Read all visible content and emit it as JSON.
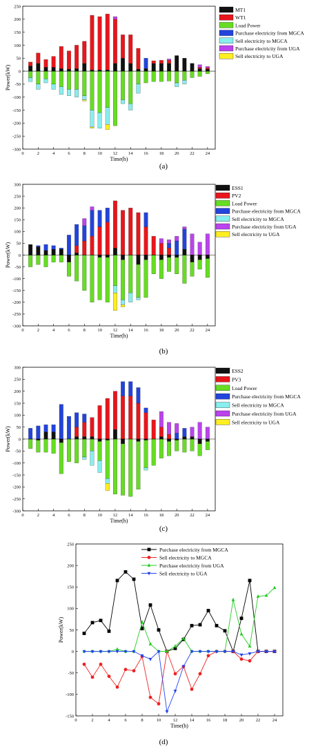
{
  "colors": {
    "MT1": "#111111",
    "WT1": "#e8161b",
    "ESS1": "#111111",
    "PV2": "#e8161b",
    "ESS2": "#111111",
    "PV3": "#e8161b",
    "Load Power": "#66dd22",
    "Purchase electricity from MGCA": "#2244dd",
    "Sell electricity to MGCA": "#88eeee",
    "Purchase electricity from UGA": "#bb44ee",
    "Sell electricity to UGA": "#ffee22",
    "d_mgca_purchase": "#000000",
    "d_mgca_sell": "#ee2222",
    "d_uga_purchase": "#22cc22",
    "d_uga_sell": "#2244ee"
  },
  "chart_data": [
    {
      "id": "a",
      "type": "bar",
      "caption": "(a)",
      "xlabel": "Time(h)",
      "ylabel": "Power(kW)",
      "ylim": [
        -300,
        250
      ],
      "yticks": [
        -300,
        -250,
        -200,
        -150,
        -100,
        -50,
        0,
        50,
        100,
        150,
        200,
        250
      ],
      "xlim": [
        0,
        25
      ],
      "xticks": [
        0,
        2,
        4,
        6,
        8,
        10,
        12,
        14,
        16,
        18,
        20,
        22,
        24
      ],
      "legend_position": "top-right",
      "legend": [
        "MT1",
        "WT1",
        "Load Power",
        "Purchase electricity from MGCA",
        "Sell electricity to MGCA",
        "Purchase electricity from UGA",
        "Sell electricity to UGA"
      ],
      "x": [
        1,
        2,
        3,
        4,
        5,
        6,
        7,
        8,
        9,
        10,
        11,
        12,
        13,
        14,
        15,
        16,
        17,
        18,
        19,
        20,
        21,
        22,
        23,
        24
      ],
      "positive": [
        {
          "name": "MT1",
          "values": [
            20,
            30,
            15,
            15,
            10,
            8,
            10,
            30,
            5,
            5,
            5,
            30,
            50,
            30,
            8,
            10,
            30,
            30,
            30,
            60,
            50,
            30,
            10,
            8
          ]
        },
        {
          "name": "WT1",
          "values": [
            15,
            40,
            30,
            42,
            85,
            70,
            90,
            85,
            210,
            205,
            215,
            170,
            90,
            110,
            80,
            0,
            10,
            12,
            12,
            0,
            0,
            0,
            5,
            5
          ]
        },
        {
          "name": "Purchase electricity from MGCA",
          "values": [
            0,
            0,
            0,
            0,
            0,
            0,
            0,
            0,
            0,
            0,
            0,
            0,
            0,
            0,
            0,
            40,
            0,
            0,
            0,
            0,
            0,
            0,
            0,
            0
          ]
        },
        {
          "name": "Purchase electricity from UGA",
          "values": [
            0,
            0,
            0,
            0,
            0,
            0,
            0,
            0,
            0,
            0,
            0,
            10,
            0,
            0,
            0,
            0,
            0,
            0,
            5,
            0,
            0,
            0,
            10,
            5
          ]
        }
      ],
      "negative": [
        {
          "name": "Load Power",
          "values": [
            -25,
            -50,
            -30,
            -50,
            -60,
            -70,
            -70,
            -95,
            -150,
            -160,
            -140,
            -210,
            -110,
            -125,
            -50,
            -45,
            -40,
            -40,
            -38,
            -45,
            -35,
            -25,
            -20,
            -10
          ]
        },
        {
          "name": "Sell electricity to MGCA",
          "values": [
            -15,
            -20,
            -15,
            -20,
            -30,
            -25,
            -30,
            -15,
            -65,
            -60,
            -65,
            0,
            -15,
            -25,
            -35,
            0,
            0,
            0,
            0,
            -15,
            -15,
            0,
            0,
            0
          ]
        },
        {
          "name": "Sell electricity to UGA",
          "values": [
            0,
            0,
            0,
            0,
            0,
            0,
            0,
            -5,
            -5,
            0,
            -20,
            0,
            0,
            0,
            0,
            0,
            0,
            0,
            0,
            0,
            0,
            0,
            0,
            0
          ]
        }
      ]
    },
    {
      "id": "b",
      "type": "bar",
      "caption": "(b)",
      "xlabel": "Time(h)",
      "ylabel": "Power(kW)",
      "ylim": [
        -300,
        300
      ],
      "yticks": [
        -300,
        -250,
        -200,
        -150,
        -100,
        -50,
        0,
        50,
        100,
        150,
        200,
        250,
        300
      ],
      "xlim": [
        0,
        25
      ],
      "xticks": [
        0,
        2,
        4,
        6,
        8,
        10,
        12,
        14,
        16,
        18,
        20,
        22,
        24
      ],
      "legend_position": "top-right",
      "legend": [
        "ESS1",
        "PV2",
        "Load Power",
        "Purchase electricity from MGCA",
        "Sell electricity to MGCA",
        "Purchase electricity from UGA",
        "Sell electricity to UGA"
      ],
      "x": [
        1,
        2,
        3,
        4,
        5,
        6,
        7,
        8,
        9,
        10,
        11,
        12,
        13,
        14,
        15,
        16,
        17,
        18,
        19,
        20,
        21,
        22,
        23,
        24
      ],
      "positive": [
        {
          "name": "ESS1",
          "values": [
            45,
            35,
            20,
            25,
            25,
            0,
            10,
            0,
            0,
            0,
            0,
            30,
            0,
            0,
            0,
            0,
            0,
            0,
            0,
            0,
            25,
            0,
            0,
            0
          ]
        },
        {
          "name": "PV2",
          "values": [
            0,
            0,
            0,
            0,
            0,
            0,
            30,
            60,
            80,
            120,
            140,
            200,
            190,
            200,
            180,
            120,
            80,
            50,
            30,
            0,
            0,
            0,
            0,
            0
          ]
        },
        {
          "name": "Purchase electricity from MGCA",
          "values": [
            0,
            5,
            25,
            15,
            5,
            85,
            90,
            65,
            110,
            70,
            60,
            0,
            0,
            0,
            0,
            60,
            0,
            0,
            20,
            60,
            85,
            0,
            0,
            0
          ]
        },
        {
          "name": "Purchase electricity from UGA",
          "values": [
            0,
            0,
            0,
            0,
            0,
            0,
            0,
            30,
            15,
            0,
            0,
            0,
            0,
            0,
            0,
            0,
            0,
            20,
            15,
            20,
            10,
            90,
            55,
            90
          ]
        }
      ],
      "negative": [
        {
          "name": "ESS1",
          "values": [
            0,
            0,
            0,
            0,
            0,
            -30,
            0,
            0,
            0,
            -10,
            -10,
            0,
            -20,
            0,
            -40,
            -20,
            0,
            -20,
            -10,
            -10,
            0,
            -30,
            -20,
            -15
          ]
        },
        {
          "name": "Load Power",
          "values": [
            -50,
            -40,
            -50,
            -30,
            -30,
            -60,
            -110,
            -150,
            -200,
            -180,
            -190,
            -130,
            -170,
            -160,
            -140,
            -160,
            -80,
            -80,
            -60,
            -70,
            -120,
            -60,
            -40,
            -80
          ]
        },
        {
          "name": "Sell electricity to MGCA",
          "values": [
            0,
            0,
            0,
            0,
            0,
            0,
            0,
            0,
            0,
            0,
            0,
            -30,
            -20,
            -40,
            -10,
            0,
            0,
            0,
            0,
            0,
            0,
            0,
            0,
            0
          ]
        },
        {
          "name": "Sell electricity to UGA",
          "values": [
            0,
            0,
            0,
            0,
            0,
            0,
            0,
            0,
            0,
            0,
            0,
            -75,
            -10,
            0,
            0,
            0,
            0,
            0,
            0,
            0,
            0,
            0,
            0,
            0
          ]
        }
      ]
    },
    {
      "id": "c",
      "type": "bar",
      "caption": "(c)",
      "xlabel": "Time(h)",
      "ylabel": "Power(kW)",
      "ylim": [
        -300,
        300
      ],
      "yticks": [
        -300,
        -250,
        -200,
        -150,
        -100,
        -50,
        0,
        50,
        100,
        150,
        200,
        250,
        300
      ],
      "xlim": [
        0,
        25
      ],
      "xticks": [
        0,
        2,
        4,
        6,
        8,
        10,
        12,
        14,
        16,
        18,
        20,
        22,
        24
      ],
      "legend_position": "top-right",
      "legend": [
        "ESS2",
        "PV3",
        "Load Power",
        "Purchase electricity from MGCA",
        "Sell electricity to MGCA",
        "Purchase electricity from UGA",
        "Sell electricity to UGA"
      ],
      "x": [
        1,
        2,
        3,
        4,
        5,
        6,
        7,
        8,
        9,
        10,
        11,
        12,
        13,
        14,
        15,
        16,
        17,
        18,
        19,
        20,
        21,
        22,
        23,
        24
      ],
      "positive": [
        {
          "name": "ESS2",
          "values": [
            0,
            0,
            30,
            30,
            0,
            0,
            10,
            10,
            10,
            0,
            0,
            40,
            0,
            0,
            0,
            0,
            0,
            10,
            0,
            0,
            10,
            10,
            0,
            0
          ]
        },
        {
          "name": "PV3",
          "values": [
            0,
            0,
            0,
            0,
            0,
            0,
            40,
            60,
            80,
            140,
            170,
            160,
            180,
            180,
            150,
            110,
            80,
            40,
            20,
            0,
            0,
            0,
            0,
            0
          ]
        },
        {
          "name": "Purchase electricity from MGCA",
          "values": [
            45,
            55,
            30,
            30,
            145,
            95,
            60,
            35,
            0,
            0,
            0,
            0,
            60,
            60,
            65,
            20,
            0,
            0,
            0,
            25,
            35,
            0,
            0,
            0
          ]
        },
        {
          "name": "Purchase electricity from UGA",
          "values": [
            0,
            0,
            0,
            0,
            0,
            0,
            0,
            0,
            0,
            0,
            0,
            0,
            0,
            0,
            0,
            0,
            0,
            65,
            50,
            40,
            0,
            40,
            70,
            50
          ]
        }
      ],
      "negative": [
        {
          "name": "ESS2",
          "values": [
            0,
            -5,
            0,
            0,
            -15,
            0,
            0,
            0,
            0,
            -10,
            -5,
            0,
            -20,
            0,
            -10,
            -5,
            0,
            0,
            -10,
            -5,
            0,
            0,
            -20,
            -10
          ]
        },
        {
          "name": "Load Power",
          "values": [
            -40,
            -50,
            -55,
            -60,
            -130,
            -95,
            -100,
            -75,
            -50,
            -80,
            -160,
            -230,
            -215,
            -240,
            -200,
            -115,
            -110,
            -80,
            -60,
            -45,
            -55,
            -50,
            -50,
            -35
          ]
        },
        {
          "name": "Sell electricity to MGCA",
          "values": [
            0,
            0,
            0,
            0,
            0,
            0,
            0,
            -10,
            -60,
            -50,
            -20,
            0,
            0,
            0,
            0,
            -10,
            0,
            0,
            0,
            0,
            0,
            0,
            0,
            0
          ]
        },
        {
          "name": "Sell electricity to UGA",
          "values": [
            0,
            0,
            0,
            0,
            0,
            0,
            0,
            0,
            0,
            0,
            -30,
            0,
            0,
            0,
            0,
            0,
            0,
            0,
            0,
            0,
            0,
            0,
            0,
            0
          ]
        }
      ]
    },
    {
      "id": "d",
      "type": "line",
      "caption": "(d)",
      "xlabel": "Time(h)",
      "ylabel": "Power(kW)",
      "ylim": [
        -150,
        250
      ],
      "yticks": [
        -150,
        -100,
        -50,
        0,
        50,
        100,
        150,
        200,
        250
      ],
      "xlim": [
        0,
        25
      ],
      "xticks": [
        0,
        2,
        4,
        6,
        8,
        10,
        12,
        14,
        16,
        18,
        20,
        22,
        24
      ],
      "legend_position": "top-center",
      "x": [
        1,
        2,
        3,
        4,
        5,
        6,
        7,
        8,
        9,
        10,
        11,
        12,
        13,
        14,
        15,
        16,
        17,
        18,
        19,
        20,
        21,
        22,
        23,
        24
      ],
      "series": [
        {
          "name": "Purchase electricity from MGCA",
          "marker": "square",
          "color_key": "d_mgca_purchase",
          "values": [
            42,
            67,
            72,
            47,
            165,
            185,
            168,
            53,
            108,
            50,
            0,
            7,
            28,
            60,
            62,
            95,
            60,
            48,
            0,
            77,
            165,
            0,
            0,
            0
          ]
        },
        {
          "name": "Sell electricity to MGCA",
          "marker": "circle",
          "color_key": "d_mgca_sell",
          "values": [
            -30,
            -60,
            -30,
            -58,
            -83,
            -42,
            -45,
            -12,
            -107,
            -122,
            0,
            -52,
            -35,
            -88,
            -52,
            -10,
            0,
            0,
            0,
            -18,
            -22,
            0,
            0,
            0
          ]
        },
        {
          "name": "Purchase electricity from UGA",
          "marker": "triangle-up",
          "color_key": "d_uga_purchase",
          "values": [
            0,
            0,
            0,
            0,
            5,
            0,
            0,
            68,
            17,
            0,
            0,
            12,
            30,
            0,
            0,
            0,
            0,
            0,
            120,
            40,
            12,
            128,
            130,
            148
          ]
        },
        {
          "name": "Sell electricity to UGA",
          "marker": "triangle-down",
          "color_key": "d_uga_sell",
          "values": [
            0,
            0,
            0,
            0,
            0,
            0,
            0,
            -10,
            -18,
            0,
            -140,
            -92,
            -35,
            0,
            0,
            0,
            0,
            0,
            0,
            -8,
            -5,
            0,
            0,
            0
          ]
        }
      ]
    }
  ]
}
